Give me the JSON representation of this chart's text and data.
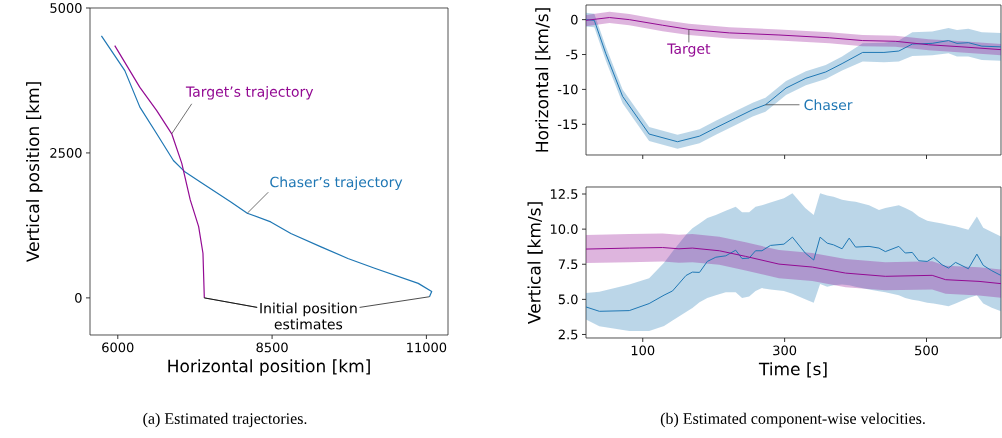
{
  "chart_data": [
    {
      "type": "line",
      "title": "(a) Estimated trajectories.",
      "xlabel": "Horizontal position [km]",
      "ylabel": "Vertical position [km]",
      "xlim": [
        5550,
        11350
      ],
      "ylim": [
        -640,
        5000
      ],
      "xticks": [
        6000,
        8500,
        11000
      ],
      "yticks": [
        0,
        2500,
        5000
      ],
      "series": [
        {
          "color": "#1f77b4",
          "x": [
            5735,
            6114,
            6358,
            6631,
            6901,
            7092,
            7337,
            7826,
            8098,
            8478,
            8804,
            9293,
            9728,
            10162,
            10868,
            11086,
            11050
          ],
          "values": [
            4520,
            3920,
            3290,
            2830,
            2370,
            2170,
            2000,
            1660,
            1460,
            1310,
            1110,
            880,
            680,
            510,
            250,
            110,
            20
          ]
        },
        {
          "color": "#930a93",
          "x": [
            5951,
            6358,
            6631,
            6874,
            7037,
            7174,
            7310,
            7380,
            7402
          ],
          "values": [
            4350,
            3630,
            3230,
            2830,
            2320,
            1690,
            1230,
            770,
            0
          ]
        }
      ],
      "annotations": [
        {
          "text": "Target’s trajectory",
          "x": 6874,
          "y": 2830
        },
        {
          "text": "Chaser’s trajectory",
          "x": 8098,
          "y": 1460
        },
        {
          "text": "Initial position estimates",
          "x": 7402,
          "y": 0
        }
      ]
    },
    {
      "type": "line",
      "ylabel": "Horizontal [km/s]",
      "xlim": [
        20,
        605
      ],
      "ylim": [
        -19.4,
        2.1
      ],
      "xticks": [
        100,
        300,
        500
      ],
      "yticks": [
        -15,
        -10,
        -5,
        0
      ],
      "tick_labels": "y",
      "series": [
        {
          "color": "#1f77b4",
          "x": [
            20,
            31.7,
            48,
            71.6,
            109,
            149,
            180,
            203,
            231,
            255,
            273,
            302,
            330,
            358,
            381,
            410,
            440,
            461,
            480,
            508,
            531,
            543,
            559,
            578,
            605
          ],
          "values": [
            0,
            -0.1,
            -4.9,
            -11.0,
            -16.4,
            -17.5,
            -16.7,
            -15.5,
            -14.1,
            -12.9,
            -12.2,
            -9.8,
            -8.4,
            -7.5,
            -6.3,
            -4.7,
            -4.7,
            -4.5,
            -3.5,
            -3.4,
            -3.0,
            -3.4,
            -3.3,
            -3.8,
            -3.9
          ],
          "lower": [
            -1,
            -1.1,
            -5.9,
            -12.0,
            -17.4,
            -18.5,
            -17.7,
            -16.5,
            -15.1,
            -13.9,
            -13.2,
            -10.8,
            -9.4,
            -8.5,
            -7.3,
            -6.0,
            -6.1,
            -6.0,
            -5.2,
            -5.1,
            -4.8,
            -5.3,
            -5.3,
            -5.8,
            -5.9
          ],
          "upper": [
            1,
            0.86,
            -3.9,
            -10.0,
            -15.4,
            -16.5,
            -15.7,
            -14.5,
            -13.1,
            -11.9,
            -11.2,
            -8.8,
            -7.4,
            -6.5,
            -5.3,
            -3.4,
            -3.3,
            -3.0,
            -1.8,
            -1.7,
            -1.2,
            -1.5,
            -1.3,
            -1.8,
            -1.9
          ]
        },
        {
          "color": "#930a93",
          "x": [
            20,
            53,
            81,
            128,
            165,
            222,
            292,
            363,
            410,
            456,
            503,
            550,
            605
          ],
          "values": [
            -0.1,
            0.3,
            0,
            -0.8,
            -1.4,
            -1.9,
            -2.2,
            -2.6,
            -3.0,
            -3.1,
            -3.6,
            -3.9,
            -4.3
          ],
          "lower": [
            -0.94,
            -0.47,
            -0.8,
            -1.65,
            -2.2,
            -2.7,
            -3.0,
            -3.4,
            -3.8,
            -3.9,
            -4.4,
            -4.7,
            -5.1
          ],
          "upper": [
            0.66,
            1.13,
            0.8,
            -0.05,
            -0.6,
            -1.1,
            -1.4,
            -1.8,
            -2.2,
            -2.3,
            -2.8,
            -3.1,
            -3.5
          ]
        }
      ],
      "annotations": [
        {
          "text": "Target",
          "x": 165,
          "y": -1.4
        },
        {
          "text": "Chaser",
          "x": 273,
          "y": -12.2
        }
      ]
    },
    {
      "type": "line",
      "title": "(b) Estimated component-wise velocities.",
      "xlabel": "Time [s]",
      "ylabel": "Vertical [km/s]",
      "xlim": [
        20,
        605
      ],
      "ylim": [
        2.25,
        13.0
      ],
      "xticks": [
        100,
        300,
        500
      ],
      "yticks": [
        2.5,
        {
          "value": 5,
          "label": "5.0"
        },
        7.5,
        {
          "value": 10,
          "label": "10.0"
        },
        12.5
      ],
      "series": [
        {
          "color": "#1f77b4",
          "x": [
            20,
            38.8,
            81,
            109,
            130,
            142,
            161,
            170,
            180,
            191,
            203,
            217,
            231,
            240,
            250,
            259,
            268,
            280,
            299,
            311,
            329,
            341,
            350,
            360,
            369,
            381,
            391,
            400,
            419,
            433,
            442,
            461,
            470,
            480,
            489,
            501,
            510,
            522,
            531,
            541,
            559,
            571,
            580,
            592,
            605
          ],
          "values": [
            4.46,
            4.15,
            4.2,
            4.7,
            5.3,
            5.6,
            6.7,
            6.94,
            6.92,
            7.7,
            8.0,
            8.1,
            8.5,
            7.9,
            7.94,
            8.46,
            8.46,
            8.84,
            8.93,
            9.43,
            8.3,
            7.8,
            9.43,
            9.0,
            8.88,
            8.6,
            9.36,
            8.72,
            8.77,
            8.65,
            8.4,
            8.77,
            8.3,
            8.34,
            7.75,
            7.7,
            7.98,
            7.46,
            7.23,
            7.63,
            7.18,
            8.22,
            7.42,
            7.04,
            6.7
          ],
          "lower": [
            3.56,
            3.09,
            2.74,
            2.74,
            3.1,
            3.5,
            4.1,
            4.39,
            4.8,
            5.1,
            5.3,
            5.5,
            5.5,
            5.1,
            5.2,
            5.6,
            5.8,
            5.7,
            5.6,
            5.4,
            5.0,
            4.75,
            6.1,
            5.9,
            6.0,
            6.05,
            6.0,
            5.9,
            5.7,
            5.57,
            5.5,
            5.3,
            5.1,
            4.98,
            4.9,
            4.75,
            4.7,
            4.6,
            4.51,
            4.7,
            5.1,
            5.3,
            4.7,
            4.4,
            4.15
          ],
          "upper": [
            5.46,
            5.55,
            6.05,
            6.5,
            7.6,
            8.4,
            9.6,
            10.07,
            10.4,
            10.8,
            11.0,
            11.3,
            11.6,
            11.2,
            11.2,
            11.6,
            11.7,
            11.9,
            12.2,
            12.55,
            11.5,
            11.0,
            12.55,
            12.4,
            12.3,
            12.1,
            12.0,
            11.95,
            11.7,
            11.37,
            11.5,
            11.7,
            11.5,
            11.25,
            10.9,
            10.6,
            10.5,
            10.4,
            10.3,
            10.2,
            9.95,
            10.9,
            10.1,
            9.8,
            9.47
          ]
        },
        {
          "color": "#930a93",
          "x": [
            20,
            81,
            128,
            151,
            170,
            208,
            245,
            292,
            339,
            386,
            442,
            508,
            527,
            574,
            605
          ],
          "values": [
            8.58,
            8.65,
            8.69,
            8.6,
            8.65,
            8.46,
            8.06,
            7.51,
            7.3,
            6.87,
            6.64,
            6.71,
            6.4,
            6.28,
            6.12
          ],
          "lower": [
            7.58,
            7.65,
            7.69,
            7.6,
            7.65,
            7.46,
            7.06,
            6.51,
            6.3,
            5.87,
            5.64,
            5.71,
            5.4,
            5.28,
            5.12
          ],
          "upper": [
            9.58,
            9.65,
            9.69,
            9.6,
            9.65,
            9.46,
            9.06,
            8.51,
            8.3,
            7.87,
            7.64,
            7.71,
            7.4,
            7.28,
            7.12
          ]
        }
      ]
    }
  ]
}
